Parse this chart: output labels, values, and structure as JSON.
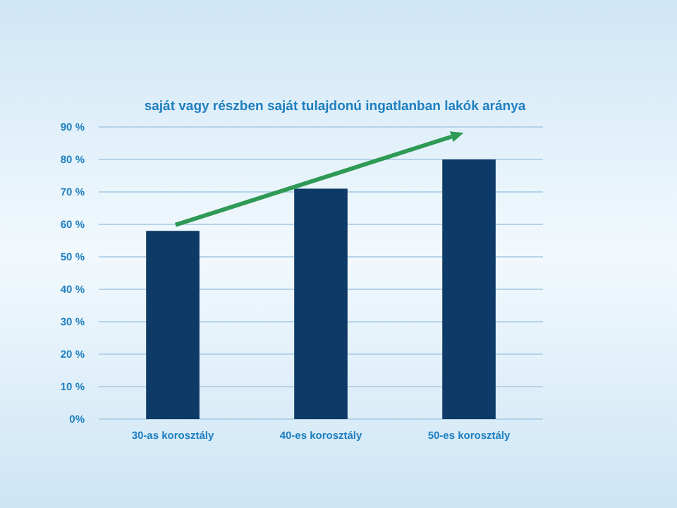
{
  "chart_data": {
    "type": "bar",
    "title": "saját vagy részben saját tulajdonú ingatlanban lakók aránya",
    "categories": [
      "30-as korosztály",
      "40-es korosztály",
      "50-es korosztály"
    ],
    "values": [
      58,
      71,
      80
    ],
    "color": "#0d3a66",
    "ylim": [
      0,
      90
    ],
    "yticks": [
      {
        "value": 0,
        "label": "0%"
      },
      {
        "value": 10,
        "label": "10 %"
      },
      {
        "value": 20,
        "label": "20 %"
      },
      {
        "value": 30,
        "label": "30 %"
      },
      {
        "value": 40,
        "label": "40 %"
      },
      {
        "value": 50,
        "label": "50 %"
      },
      {
        "value": 60,
        "label": "60 %"
      },
      {
        "value": 70,
        "label": "70 %"
      },
      {
        "value": 80,
        "label": "80 %"
      },
      {
        "value": 90,
        "label": "90 %"
      }
    ],
    "grid": "y"
  }
}
